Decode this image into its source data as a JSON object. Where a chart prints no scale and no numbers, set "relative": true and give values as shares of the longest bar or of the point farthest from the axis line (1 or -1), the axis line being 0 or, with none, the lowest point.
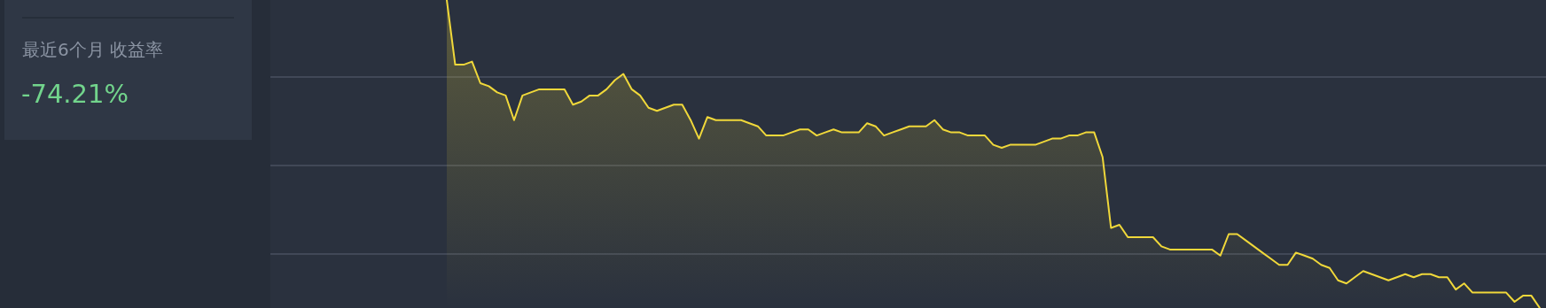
{
  "chart_data": [
    {
      "type": "other",
      "title": "最近6个月 收益率",
      "annotations": [
        "-74.21%"
      ]
    },
    {
      "type": "area",
      "relative": true,
      "grid": true,
      "color": "#f0d83a",
      "categories": [
        null,
        null,
        null,
        null,
        null,
        null,
        null,
        null,
        null,
        null,
        null,
        null,
        null,
        null,
        null,
        null,
        null,
        null,
        null,
        null,
        null,
        null,
        null,
        null,
        null,
        null,
        null,
        null,
        null,
        null,
        null,
        null,
        null,
        null,
        null,
        null,
        null,
        null,
        null,
        null,
        null,
        null,
        null,
        null,
        null,
        null,
        null,
        null,
        null,
        null,
        null,
        null,
        null,
        null,
        null,
        null,
        null,
        null,
        null,
        null,
        null,
        null,
        null,
        null,
        null,
        null,
        null,
        null,
        null,
        null,
        null,
        null,
        null,
        null,
        null,
        null,
        null,
        null,
        null,
        null,
        null,
        null,
        null,
        null,
        null,
        null,
        null,
        null,
        null,
        null,
        null,
        null,
        null,
        null,
        null,
        null,
        null,
        null,
        null,
        null,
        null,
        null,
        null,
        null,
        null,
        null,
        null,
        null,
        null,
        null,
        null,
        null,
        null,
        null,
        null,
        null,
        null,
        null,
        null,
        null,
        null,
        null,
        null,
        null,
        null,
        null,
        null,
        null,
        null,
        null,
        null
      ],
      "values": [
        1.0,
        0.79,
        0.79,
        0.8,
        0.73,
        0.72,
        0.7,
        0.69,
        0.61,
        0.69,
        0.7,
        0.71,
        0.71,
        0.71,
        0.71,
        0.66,
        0.67,
        0.69,
        0.69,
        0.71,
        0.74,
        0.76,
        0.71,
        0.69,
        0.65,
        0.64,
        0.65,
        0.66,
        0.66,
        0.61,
        0.55,
        0.62,
        0.61,
        0.61,
        0.61,
        0.61,
        0.6,
        0.59,
        0.56,
        0.56,
        0.56,
        0.57,
        0.58,
        0.58,
        0.56,
        0.57,
        0.58,
        0.57,
        0.57,
        0.57,
        0.6,
        0.59,
        0.56,
        0.57,
        0.58,
        0.59,
        0.59,
        0.59,
        0.61,
        0.58,
        0.57,
        0.57,
        0.56,
        0.56,
        0.56,
        0.53,
        0.52,
        0.53,
        0.53,
        0.53,
        0.53,
        0.54,
        0.55,
        0.55,
        0.56,
        0.56,
        0.57,
        0.57,
        0.49,
        0.26,
        0.27,
        0.23,
        0.23,
        0.23,
        0.23,
        0.2,
        0.19,
        0.19,
        0.19,
        0.19,
        0.19,
        0.19,
        0.17,
        0.24,
        0.24,
        0.22,
        0.2,
        0.18,
        0.16,
        0.14,
        0.14,
        0.18,
        0.17,
        0.16,
        0.14,
        0.13,
        0.09,
        0.08,
        0.1,
        0.12,
        0.11,
        0.1,
        0.09,
        0.1,
        0.11,
        0.1,
        0.11,
        0.11,
        0.1,
        0.1,
        0.06,
        0.08,
        0.05,
        0.05,
        0.05,
        0.05,
        0.05,
        0.02,
        0.04,
        0.04,
        0.0
      ]
    }
  ]
}
